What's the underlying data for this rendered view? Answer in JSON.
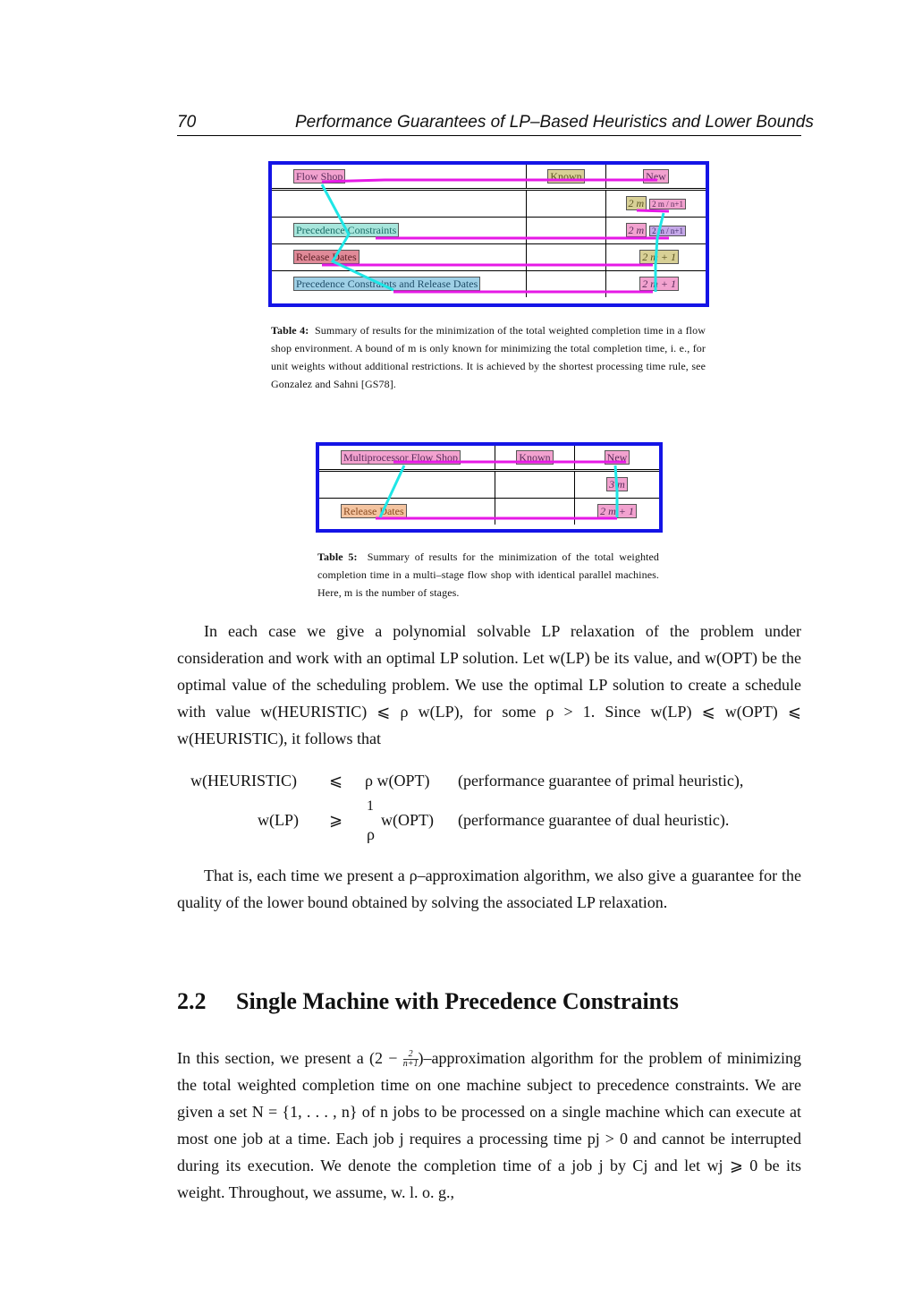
{
  "header": {
    "page_number": "70",
    "running_title": "Performance Guarantees of LP–Based Heuristics and Lower Bounds"
  },
  "table4": {
    "columns": [
      "Flow Shop",
      "Known",
      "New"
    ],
    "rows": [
      {
        "problem": "",
        "known": "",
        "new_a": "2 m",
        "new_b": "2 m / n+1"
      },
      {
        "problem": "Precedence Constraints",
        "known": "",
        "new_a": "2 m",
        "new_b": "2 m / n+1"
      },
      {
        "problem": "Release Dates",
        "known": "",
        "new_a": "2 m + 1",
        "new_b": ""
      },
      {
        "problem": "Precedence Constraints and Release Dates",
        "known": "",
        "new_a": "2 m + 1",
        "new_b": ""
      }
    ],
    "caption_label": "Table 4:",
    "caption_text": "Summary of results for the minimization of the total weighted completion time in a flow shop environment. A bound of m is only known for minimizing the total completion time, i. e., for unit weights without additional restrictions. It is achieved by the shortest processing time rule, see Gonzalez and Sahni [GS78]."
  },
  "table5": {
    "columns": [
      "Multiprocessor Flow Shop",
      "Known",
      "New"
    ],
    "rows": [
      {
        "problem": "",
        "known": "",
        "new": "3 m"
      },
      {
        "problem": "Release Dates",
        "known": "",
        "new": "2 m + 1"
      }
    ],
    "caption_label": "Table 5:",
    "caption_text": "Summary of results for the minimization of the total weighted completion time in a multi–stage flow shop with identical parallel machines. Here, m is the number of stages."
  },
  "body": {
    "para1": "In each case we give a polynomial solvable LP relaxation of the problem under consideration and work with an optimal LP solution. Let w(LP) be its value, and w(OPT) be the optimal value of the scheduling problem. We use the optimal LP solution to create a schedule with value w(HEURISTIC) ⩽ ρ w(LP), for some ρ > 1. Since w(LP) ⩽ w(OPT) ⩽ w(HEURISTIC), it follows that",
    "eq1_lhs": "w(HEURISTIC)",
    "eq1_rel": "⩽",
    "eq1_rhs": "ρ w(OPT)",
    "eq1_note": "(performance guarantee of primal heuristic),",
    "eq2_lhs": "w(LP)",
    "eq2_rel": "⩾",
    "eq2_num": "1",
    "eq2_den": "ρ",
    "eq2_rhs": "w(OPT)",
    "eq2_note": "(performance guarantee of dual heuristic).",
    "para2": "That is, each time we present a ρ–approximation algorithm, we also give a guarantee for the quality of the lower bound obtained by solving the associated LP relaxation.",
    "section_number": "2.2",
    "section_title": "Single Machine with Precedence Constraints",
    "para3_a": "In this section, we present a (2 −",
    "para3_frac_num": "2",
    "para3_frac_den": "n+1",
    "para3_b": ")–approximation algorithm for the problem of minimizing the total weighted completion time on one machine subject to precedence constraints. We are given a set N = {1, . . . , n} of n jobs to be processed on a single machine which can execute at most one job at a time. Each job j requires a processing time pj > 0 and cannot be interrupted during its execution. We denote the completion time of a job j by Cj and let wj ⩾ 0 be its weight. Throughout, we assume, w. l. o. g.,"
  },
  "colors": {
    "table_border": "#1414e6",
    "overlay_magenta": "#e619e6",
    "overlay_cyan": "#1fe6e6"
  }
}
